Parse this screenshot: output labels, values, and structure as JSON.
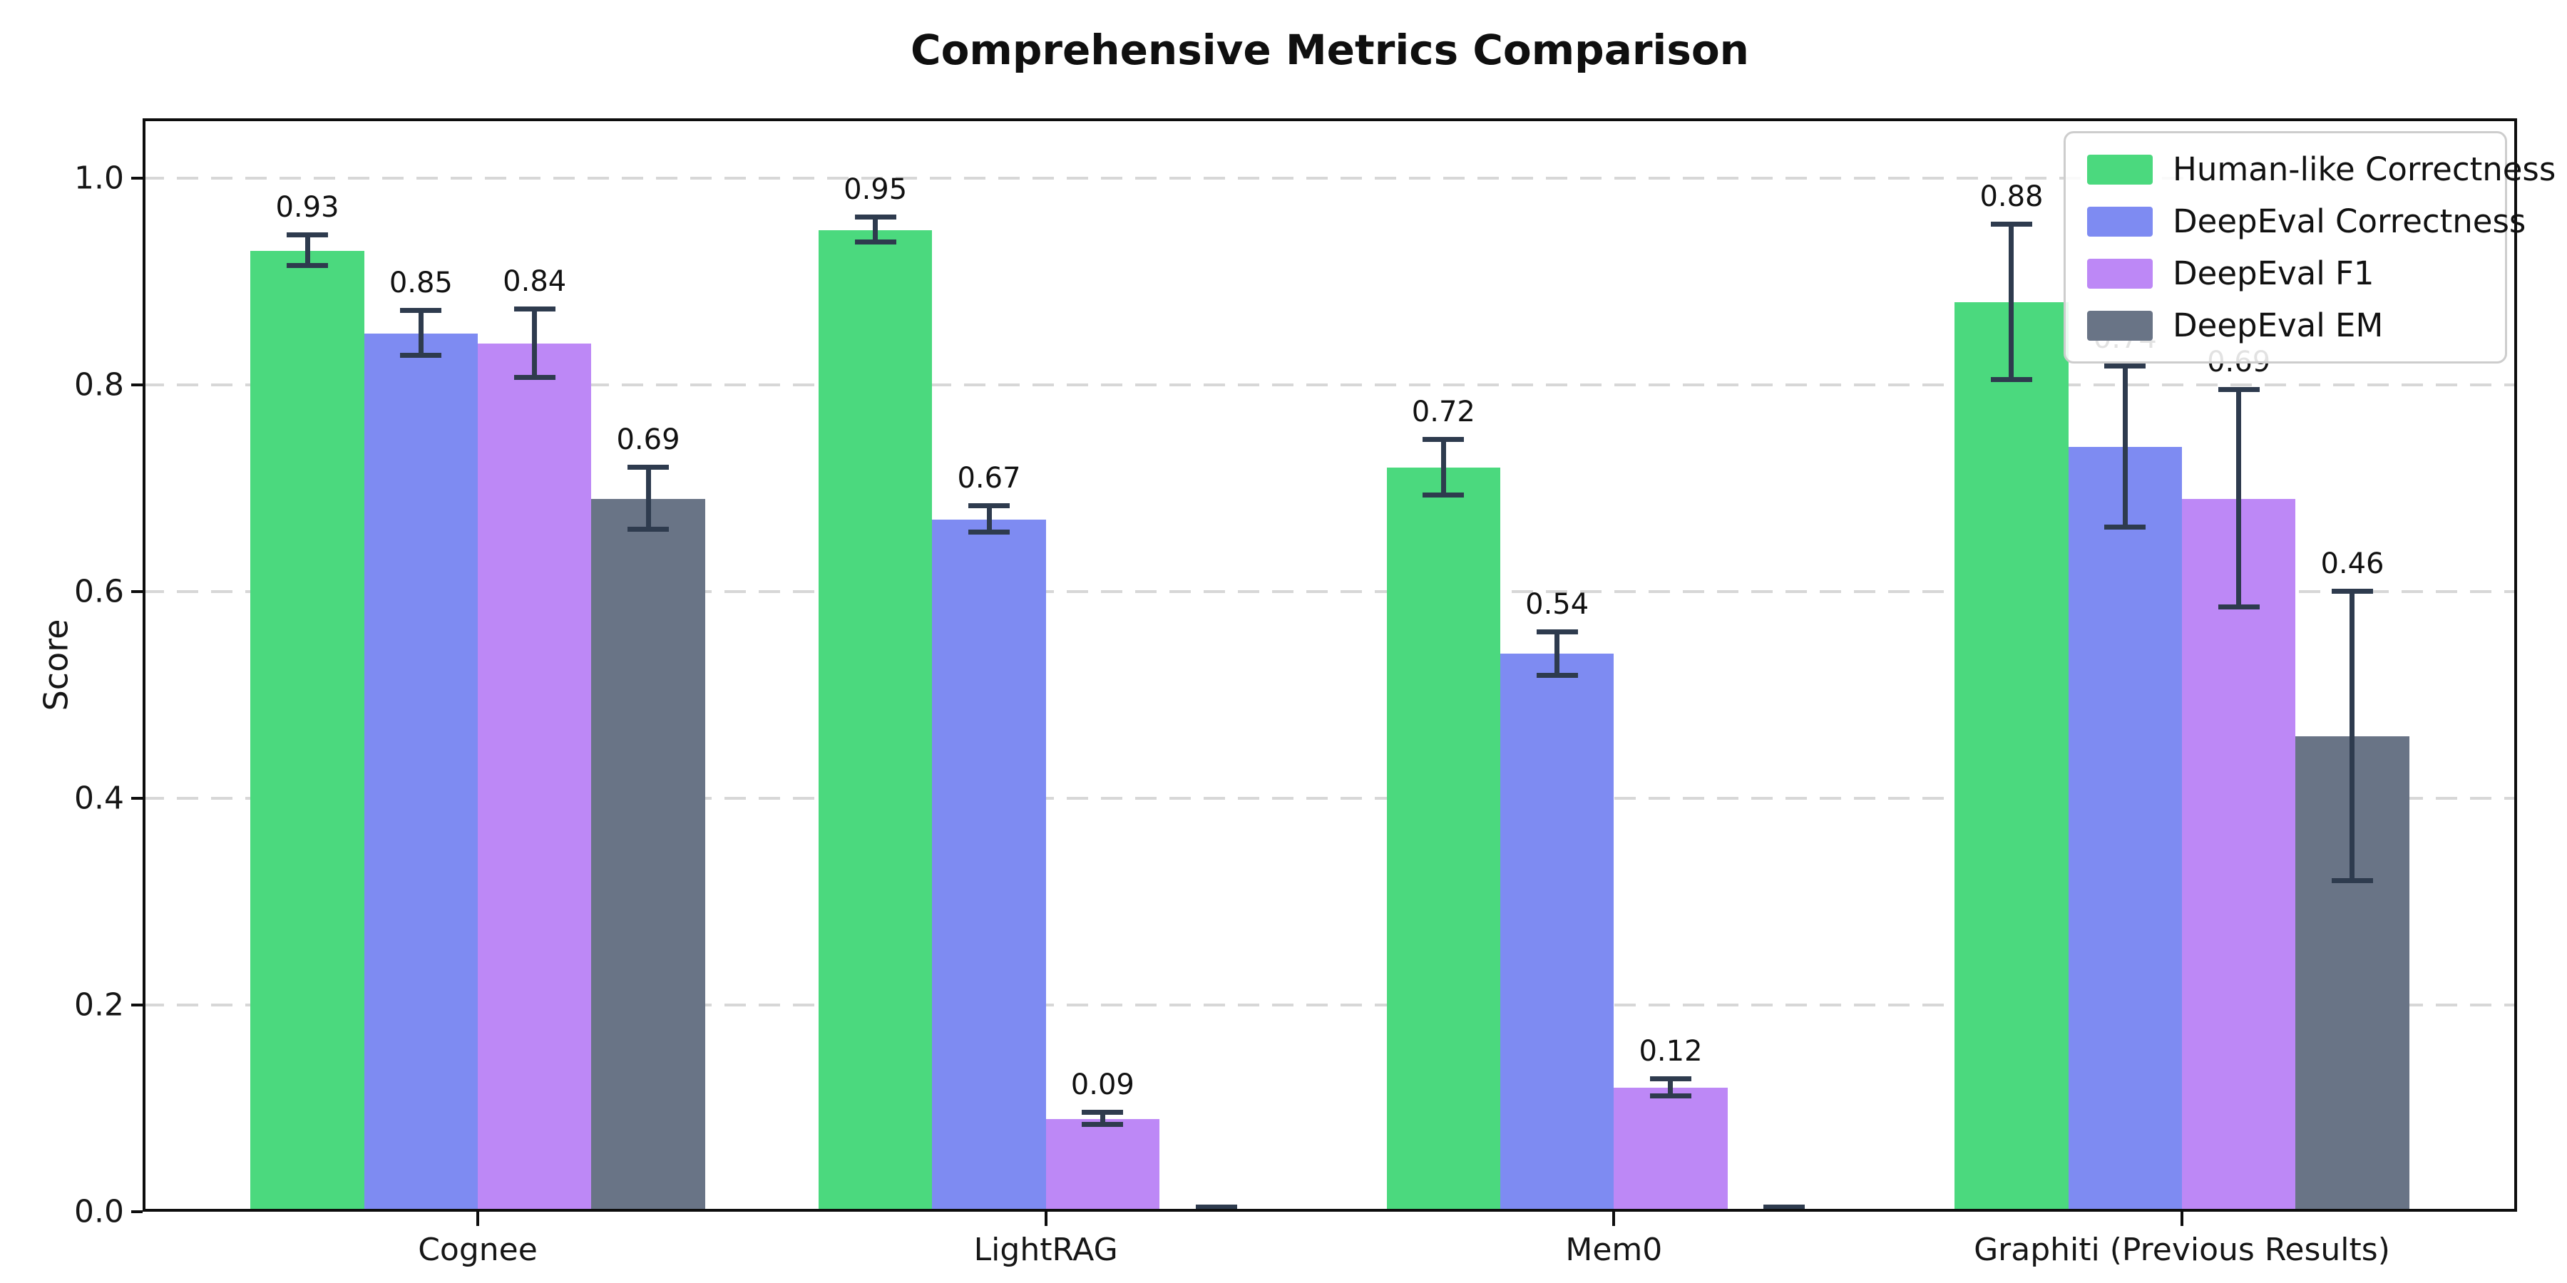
{
  "chart_data": {
    "type": "bar",
    "title": "Comprehensive Metrics Comparison",
    "xlabel": "",
    "ylabel": "Score",
    "ylim": [
      0,
      1.058
    ],
    "yticks": [
      0.0,
      0.2,
      0.4,
      0.6,
      0.8,
      1.0
    ],
    "grid": "horizontal-dashed",
    "legend_position": "upper-right",
    "categories": [
      "Cognee",
      "LightRAG",
      "Mem0",
      "Graphiti (Previous Results)"
    ],
    "series": [
      {
        "name": "Human-like Correctness",
        "color": "#4bd97e",
        "values": [
          0.93,
          0.95,
          0.72,
          0.88
        ],
        "errors": [
          0.015,
          0.012,
          0.027,
          0.075
        ],
        "labels": [
          "0.93",
          "0.95",
          "0.72",
          "0.88"
        ]
      },
      {
        "name": "DeepEval Correctness",
        "color": "#7e8bf2",
        "values": [
          0.85,
          0.67,
          0.54,
          0.74
        ],
        "errors": [
          0.022,
          0.013,
          0.021,
          0.078
        ],
        "labels": [
          "0.85",
          "0.67",
          "0.54",
          "0.74"
        ]
      },
      {
        "name": "DeepEval F1",
        "color": "#bd88f6",
        "values": [
          0.84,
          0.09,
          0.12,
          0.69
        ],
        "errors": [
          0.033,
          0.006,
          0.008,
          0.105
        ],
        "labels": [
          "0.84",
          "0.09",
          "0.12",
          "0.69"
        ]
      },
      {
        "name": "DeepEval EM",
        "color": "#697486",
        "values": [
          0.69,
          0.0,
          0.0,
          0.46
        ],
        "errors": [
          0.03,
          0.004,
          0.004,
          0.14
        ],
        "labels": [
          "0.69",
          "",
          "",
          "0.46"
        ]
      }
    ],
    "error_bar_color": "#2e3b4e"
  }
}
